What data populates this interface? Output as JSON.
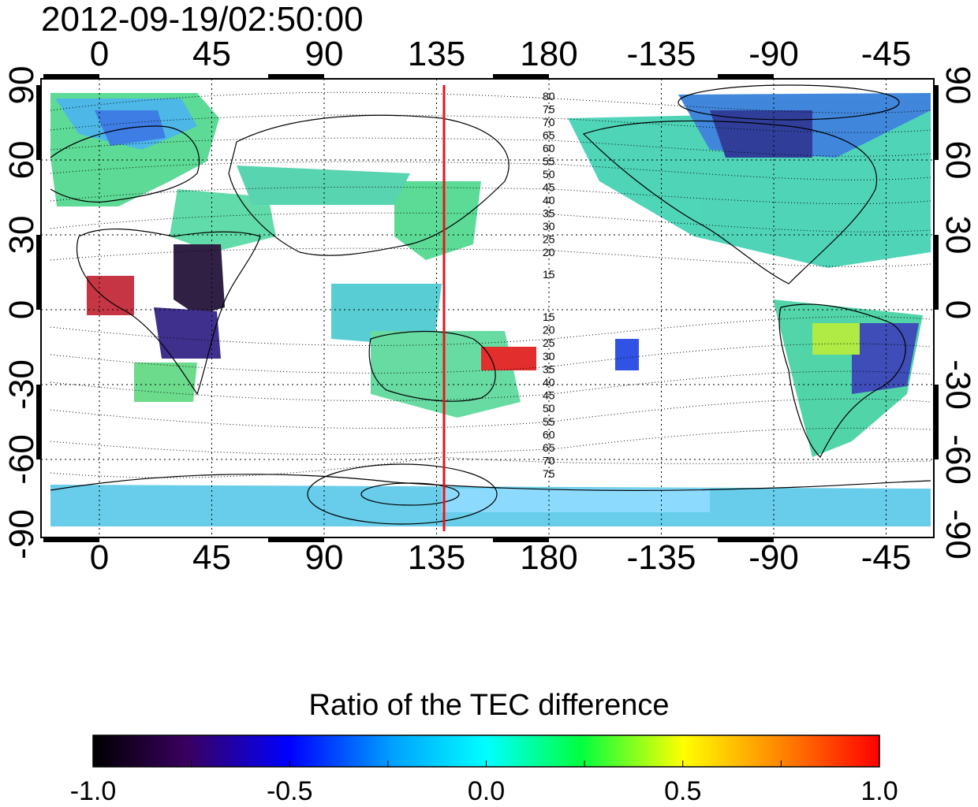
{
  "title": "2012-09-19/02:50:00",
  "top_axis_ticks": [
    "0",
    "45",
    "90",
    "135",
    "180",
    "-135",
    "-90",
    "-45"
  ],
  "bottom_axis_ticks": [
    "0",
    "45",
    "90",
    "135",
    "180",
    "-135",
    "-90",
    "-45"
  ],
  "left_axis_ticks": [
    "90",
    "60",
    "30",
    "0",
    "-30",
    "-60",
    "-90"
  ],
  "right_axis_ticks": [
    "90",
    "60",
    "30",
    "0",
    "-30",
    "-60",
    "-90"
  ],
  "marker_longitude": 138,
  "marker_color": "#e8141c",
  "north_contour_labels": [
    "80",
    "75",
    "70",
    "65",
    "60",
    "55",
    "50",
    "45",
    "40",
    "35",
    "30",
    "25",
    "20",
    "15"
  ],
  "south_contour_labels": [
    "15",
    "20",
    "25",
    "30",
    "35",
    "40",
    "45",
    "50",
    "55",
    "60",
    "65",
    "70",
    "75"
  ],
  "colorbar": {
    "title": "Ratio of the TEC difference",
    "min": -1.0,
    "max": 1.0,
    "tick_labels": [
      "-1.0",
      "-0.5",
      "0.0",
      "0.5",
      "1.0"
    ],
    "colors": [
      "#000000",
      "#3a0060",
      "#0000ff",
      "#00ffff",
      "#00ff00",
      "#ffff00",
      "#ff0000"
    ]
  }
}
